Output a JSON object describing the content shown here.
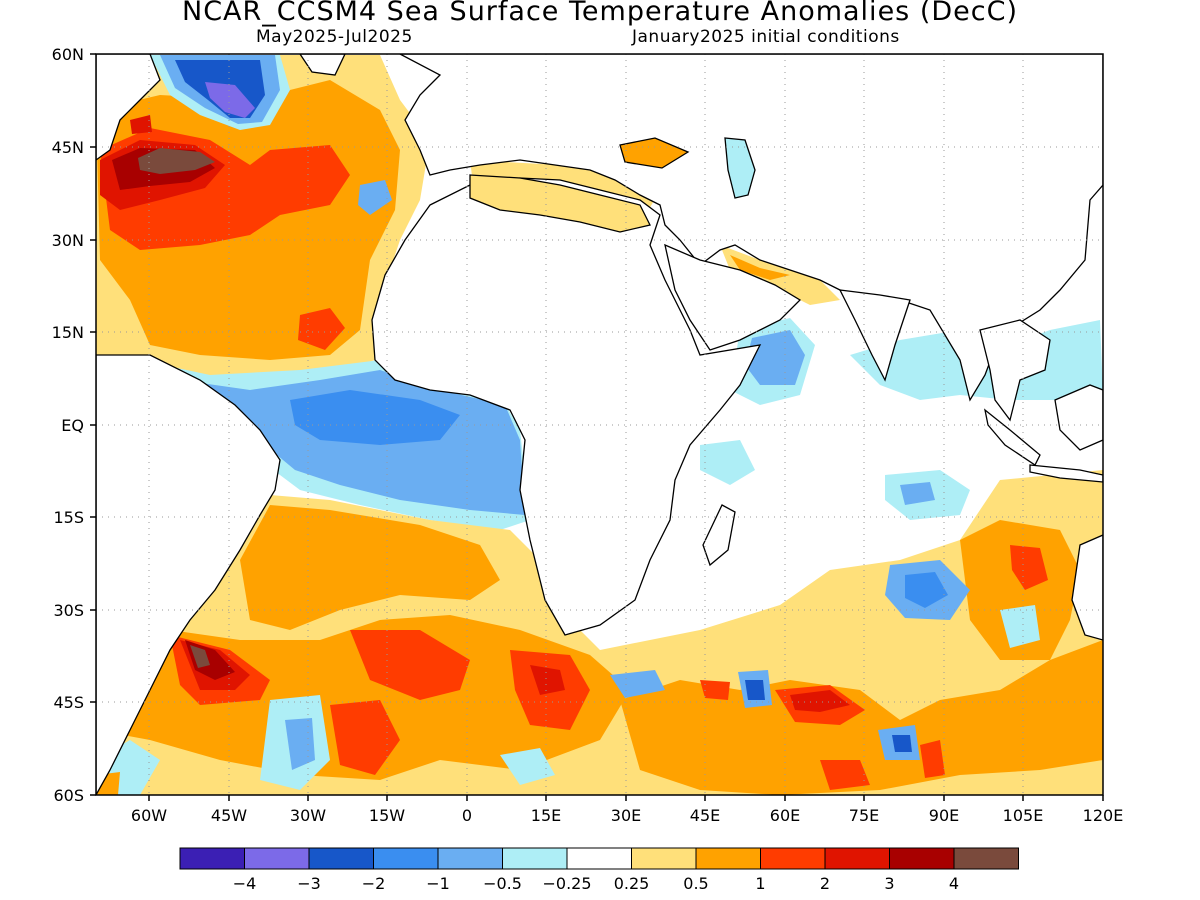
{
  "header": {
    "title": "NCAR_CCSM4 Sea Surface Temperature Anomalies (DecC)",
    "period": "May2025-Jul2025",
    "init": "January2025 initial conditions"
  },
  "axes": {
    "lat_labels": [
      "60N",
      "45N",
      "30N",
      "15N",
      "EQ",
      "15S",
      "30S",
      "45S",
      "60S"
    ],
    "lon_labels": [
      "60W",
      "45W",
      "30W",
      "15W",
      "0",
      "15E",
      "30E",
      "45E",
      "60E",
      "75E",
      "90E",
      "105E",
      "120E"
    ]
  },
  "colorbar": {
    "colors": [
      "#3b1fb4",
      "#7c6ae8",
      "#1757c9",
      "#3a8ef0",
      "#6aaef2",
      "#aeeef6",
      "#ffffff",
      "#ffe07a",
      "#ffa200",
      "#ff3c00",
      "#e01400",
      "#a80000",
      "#7a4a3c"
    ],
    "labels": [
      "-4",
      "-3",
      "-2",
      "-1",
      "-0.5",
      "-0.25",
      "0.25",
      "0.5",
      "1",
      "2",
      "3",
      "4"
    ]
  },
  "map_data": {
    "variable": "Sea Surface Temperature Anomalies",
    "units": "DecC",
    "lon_range": [
      -70,
      120
    ],
    "lat_range": [
      -60,
      60
    ],
    "features": [
      {
        "name": "NW Atlantic cold core",
        "lon": -43,
        "lat": 55,
        "category": "-4 to -3"
      },
      {
        "name": "Gulf Stream warm core",
        "lon": -52,
        "lat": 44,
        "category": "> 4"
      },
      {
        "name": "Equatorial Atlantic cold tongue",
        "lon": -5,
        "lat": -3,
        "category": "-1 to -0.5"
      },
      {
        "name": "South Atlantic warm core",
        "lon": -52,
        "lat": -38,
        "category": "> 4"
      },
      {
        "name": "Southern Indian Ocean warm patch",
        "lon": 62,
        "lat": -48,
        "category": "2 to 3"
      }
    ]
  }
}
